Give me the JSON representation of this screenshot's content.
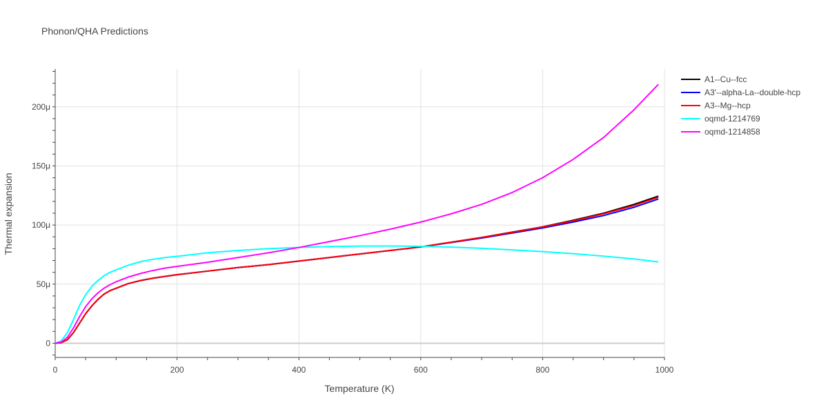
{
  "chart_data": {
    "type": "line",
    "title": "Phonon/QHA Predictions",
    "xlabel": "Temperature (K)",
    "ylabel": "Thermal expansion",
    "xlim": [
      0,
      1000
    ],
    "ylim": [
      -1.2e-05,
      0.000232
    ],
    "xticks": [
      0,
      200,
      400,
      600,
      800,
      1000
    ],
    "xtick_labels": [
      "0",
      "200",
      "400",
      "600",
      "800",
      "1000"
    ],
    "yticks": [
      0,
      5e-05,
      0.0001,
      0.00015,
      0.0002
    ],
    "ytick_labels": [
      "0",
      "50μ",
      "100μ",
      "150μ",
      "200μ"
    ],
    "grid": true,
    "legend_position": "top-right",
    "series": [
      {
        "name": "A1--Cu--fcc",
        "color": "#000000",
        "x": [
          0,
          10,
          20,
          30,
          40,
          50,
          60,
          70,
          80,
          90,
          100,
          120,
          140,
          160,
          180,
          200,
          250,
          300,
          350,
          400,
          450,
          500,
          550,
          600,
          650,
          700,
          750,
          800,
          850,
          900,
          950,
          990
        ],
        "y": [
          0,
          5e-07,
          3e-06,
          9e-06,
          1.7e-05,
          2.5e-05,
          3.15e-05,
          3.7e-05,
          4.15e-05,
          4.45e-05,
          4.65e-05,
          5.05e-05,
          5.3e-05,
          5.5e-05,
          5.65e-05,
          5.8e-05,
          6.1e-05,
          6.4e-05,
          6.65e-05,
          6.95e-05,
          7.25e-05,
          7.55e-05,
          7.85e-05,
          8.15e-05,
          8.55e-05,
          8.95e-05,
          9.4e-05,
          9.85e-05,
          0.000104,
          0.00011,
          0.0001175,
          0.0001245
        ]
      },
      {
        "name": "A3'--alpha-La--double-hcp",
        "color": "#0000ff",
        "x": [
          0,
          10,
          20,
          30,
          40,
          50,
          60,
          70,
          80,
          90,
          100,
          120,
          140,
          160,
          180,
          200,
          250,
          300,
          350,
          400,
          450,
          500,
          550,
          600,
          650,
          700,
          750,
          800,
          850,
          900,
          950,
          990
        ],
        "y": [
          0,
          5e-07,
          3e-06,
          9e-06,
          1.7e-05,
          2.5e-05,
          3.15e-05,
          3.7e-05,
          4.15e-05,
          4.45e-05,
          4.65e-05,
          5.05e-05,
          5.3e-05,
          5.5e-05,
          5.65e-05,
          5.8e-05,
          6.1e-05,
          6.4e-05,
          6.65e-05,
          6.95e-05,
          7.25e-05,
          7.55e-05,
          7.85e-05,
          8.15e-05,
          8.52e-05,
          8.9e-05,
          9.32e-05,
          9.75e-05,
          0.0001025,
          0.000108,
          0.000115,
          0.000122
        ]
      },
      {
        "name": "A3--Mg--hcp",
        "color": "#ff0000",
        "x": [
          0,
          10,
          20,
          30,
          40,
          50,
          60,
          70,
          80,
          90,
          100,
          120,
          140,
          160,
          180,
          200,
          250,
          300,
          350,
          400,
          450,
          500,
          550,
          600,
          650,
          700,
          750,
          800,
          850,
          900,
          950,
          990
        ],
        "y": [
          0,
          5e-07,
          3e-06,
          9e-06,
          1.7e-05,
          2.5e-05,
          3.15e-05,
          3.7e-05,
          4.15e-05,
          4.45e-05,
          4.65e-05,
          5.05e-05,
          5.3e-05,
          5.5e-05,
          5.65e-05,
          5.8e-05,
          6.1e-05,
          6.4e-05,
          6.65e-05,
          6.95e-05,
          7.25e-05,
          7.55e-05,
          7.85e-05,
          8.15e-05,
          8.55e-05,
          8.95e-05,
          9.38e-05,
          9.83e-05,
          0.0001035,
          0.0001095,
          0.0001165,
          0.0001235
        ]
      },
      {
        "name": "oqmd-1214769",
        "color": "#00ffff",
        "x": [
          0,
          10,
          20,
          30,
          40,
          50,
          60,
          70,
          80,
          90,
          100,
          120,
          140,
          160,
          180,
          200,
          250,
          300,
          350,
          400,
          450,
          500,
          550,
          600,
          650,
          700,
          750,
          800,
          850,
          900,
          950,
          990
        ],
        "y": [
          0,
          2e-06,
          9e-06,
          2e-05,
          3.2e-05,
          4.1e-05,
          4.8e-05,
          5.3e-05,
          5.7e-05,
          6e-05,
          6.2e-05,
          6.6e-05,
          6.9e-05,
          7.1e-05,
          7.25e-05,
          7.35e-05,
          7.65e-05,
          7.85e-05,
          8e-05,
          8.1e-05,
          8.18e-05,
          8.22e-05,
          8.23e-05,
          8.2e-05,
          8.13e-05,
          8.03e-05,
          7.9e-05,
          7.75e-05,
          7.58e-05,
          7.37e-05,
          7.13e-05,
          6.88e-05
        ]
      },
      {
        "name": "oqmd-1214858",
        "color": "#ff00ff",
        "x": [
          0,
          10,
          20,
          30,
          40,
          50,
          60,
          70,
          80,
          90,
          100,
          120,
          140,
          160,
          180,
          200,
          250,
          300,
          350,
          400,
          450,
          500,
          550,
          600,
          650,
          700,
          750,
          800,
          850,
          900,
          950,
          990
        ],
        "y": [
          0,
          1e-06,
          5e-06,
          1.3e-05,
          2.25e-05,
          3.1e-05,
          3.75e-05,
          4.25e-05,
          4.65e-05,
          4.95e-05,
          5.2e-05,
          5.6e-05,
          5.9e-05,
          6.15e-05,
          6.35e-05,
          6.5e-05,
          6.85e-05,
          7.25e-05,
          7.65e-05,
          8.1e-05,
          8.6e-05,
          9.1e-05,
          9.65e-05,
          0.0001025,
          0.0001095,
          0.0001175,
          0.0001275,
          0.00014,
          0.0001555,
          0.000174,
          0.0001975,
          0.000219
        ]
      }
    ]
  }
}
